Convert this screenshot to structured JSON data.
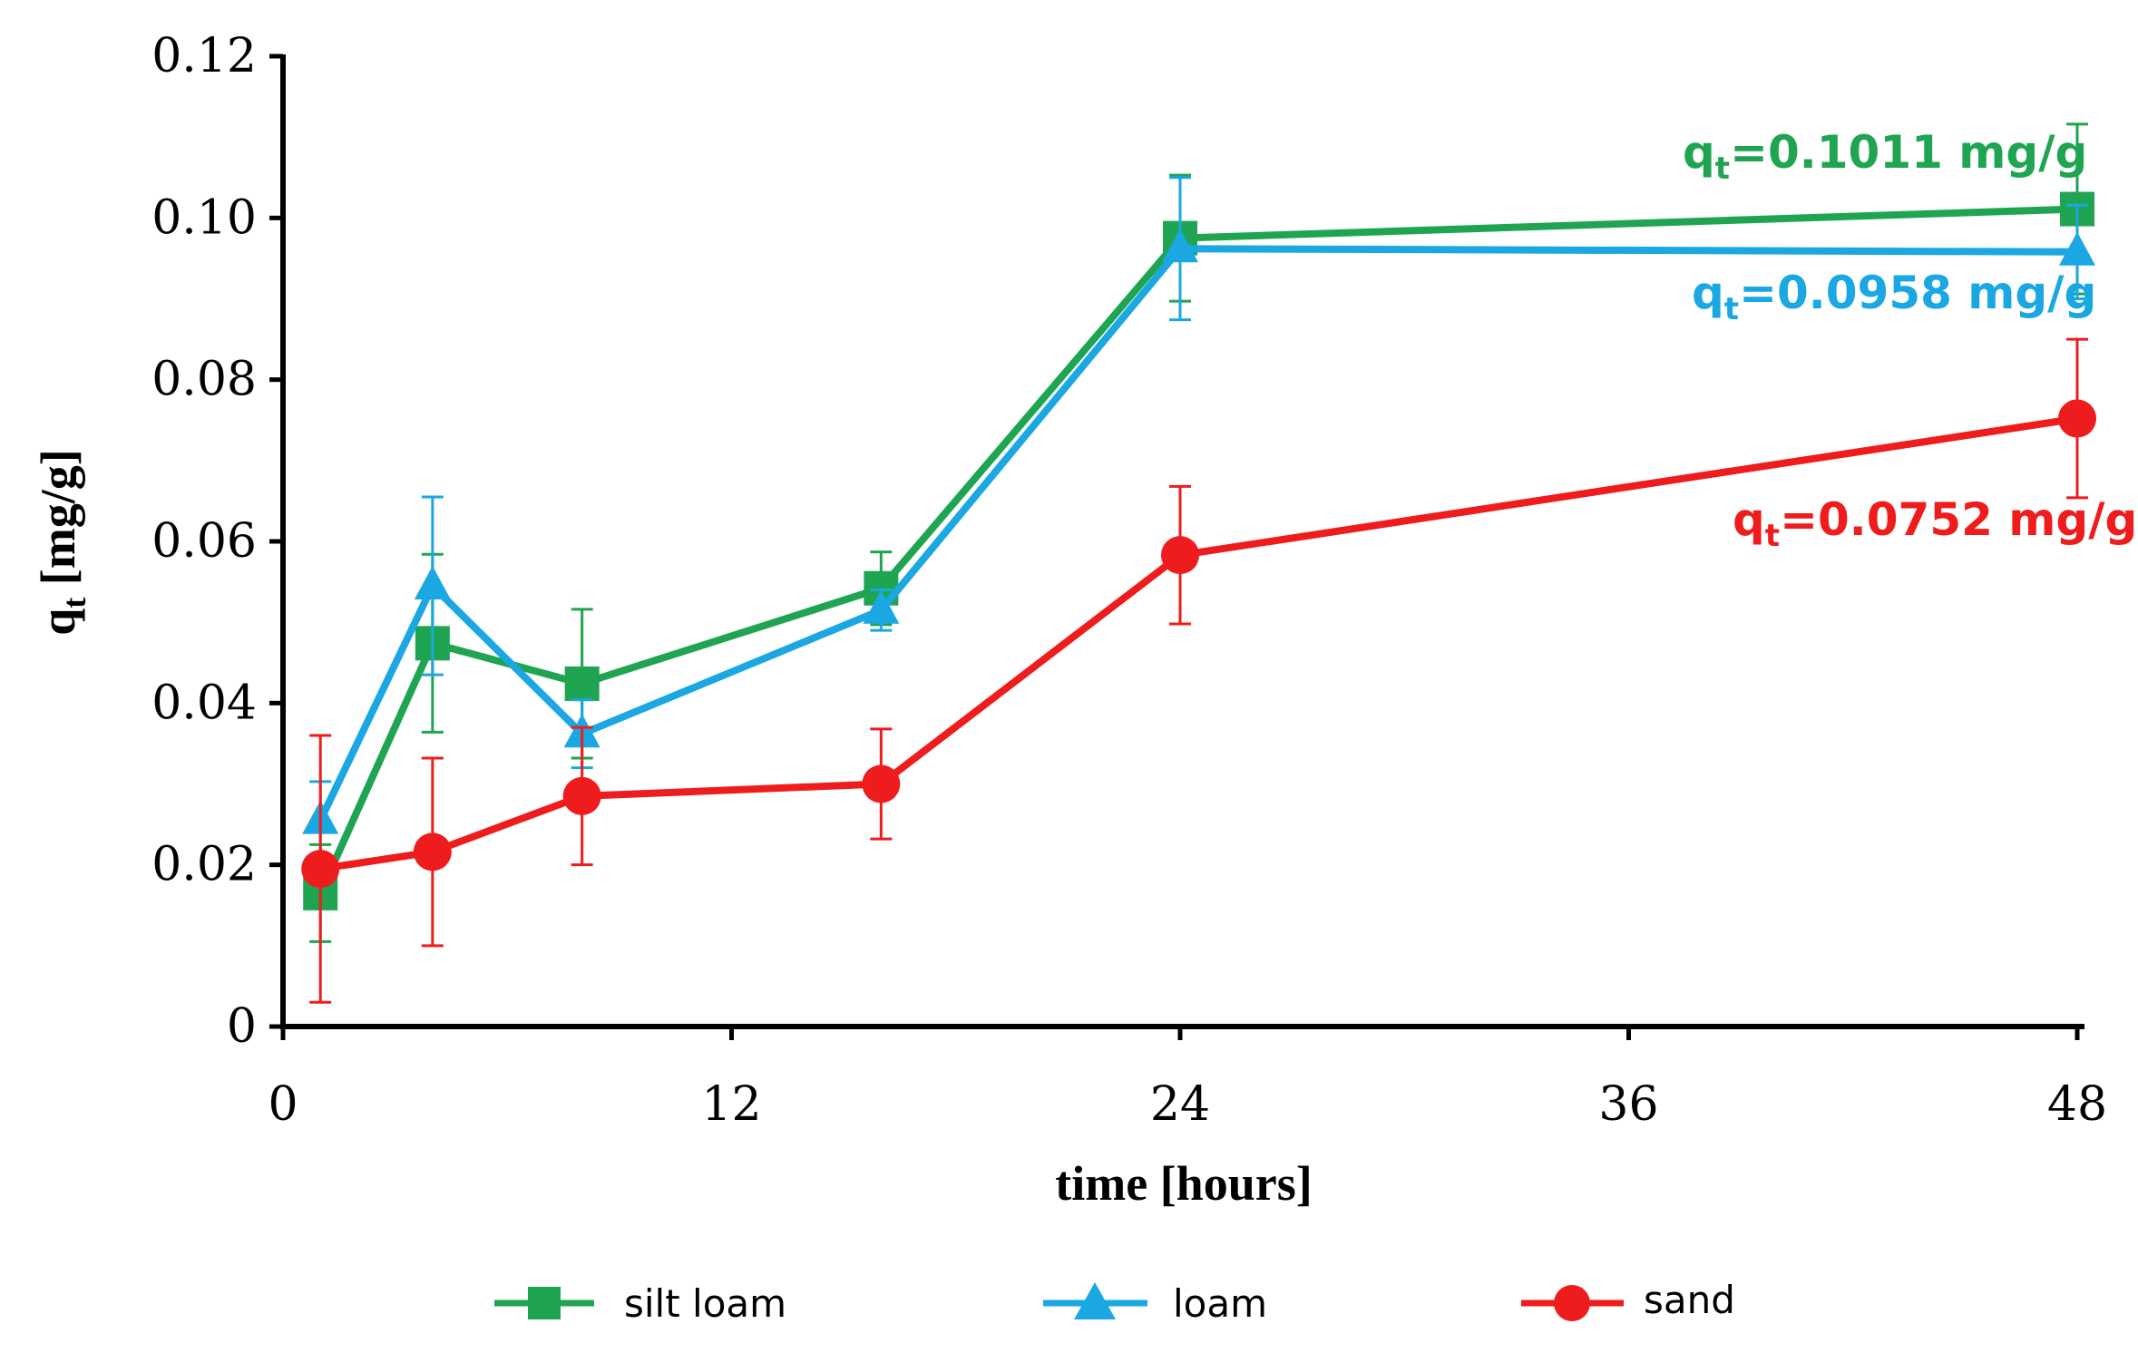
{
  "chart_data": {
    "type": "line",
    "xlabel": "time [hours]",
    "ylabel": {
      "base": "q",
      "sub": "t",
      "rest": " [mg/g]"
    },
    "xlim": [
      0,
      48
    ],
    "ylim": [
      0,
      0.12
    ],
    "xticks": [
      0,
      12,
      24,
      36,
      48
    ],
    "xtick_labels": [
      "0",
      "12",
      "24",
      "36",
      "48"
    ],
    "yticks": [
      0,
      0.02,
      0.04,
      0.06,
      0.08,
      0.1,
      0.12
    ],
    "ytick_labels": [
      "0",
      "0.02",
      "0.04",
      "0.06",
      "0.08",
      "0.10",
      "0.12"
    ],
    "grid": false,
    "legend_position": "bottom",
    "x": [
      1,
      4,
      8,
      16,
      24,
      48
    ],
    "series": [
      {
        "name": "silt loam",
        "color": "#1fa552",
        "marker": "square",
        "values": [
          0.0165,
          0.0474,
          0.0424,
          0.0542,
          0.0975,
          0.1011
        ],
        "errors": [
          0.006,
          0.011,
          0.0092,
          0.0045,
          0.0078,
          0.0105
        ],
        "annotation": {
          "base": "q",
          "sub": "t",
          "rest": "=0.1011 mg/g"
        }
      },
      {
        "name": "loam",
        "color": "#1aa7e2",
        "marker": "triangle",
        "values": [
          0.0255,
          0.0545,
          0.0362,
          0.0515,
          0.0962,
          0.0958
        ],
        "errors": [
          0.0048,
          0.011,
          0.0042,
          0.0025,
          0.0088,
          0.0058
        ],
        "annotation": {
          "base": "q",
          "sub": "t",
          "rest": "=0.0958 mg/g"
        }
      },
      {
        "name": "sand",
        "color": "#ee1c1c",
        "marker": "circle",
        "values": [
          0.0195,
          0.0216,
          0.0285,
          0.03,
          0.0583,
          0.0752
        ],
        "errors": [
          0.0165,
          0.0116,
          0.0085,
          0.0068,
          0.0085,
          0.0098
        ],
        "annotation": {
          "base": "q",
          "sub": "t",
          "rest": "=0.0752 mg/g"
        }
      }
    ]
  }
}
